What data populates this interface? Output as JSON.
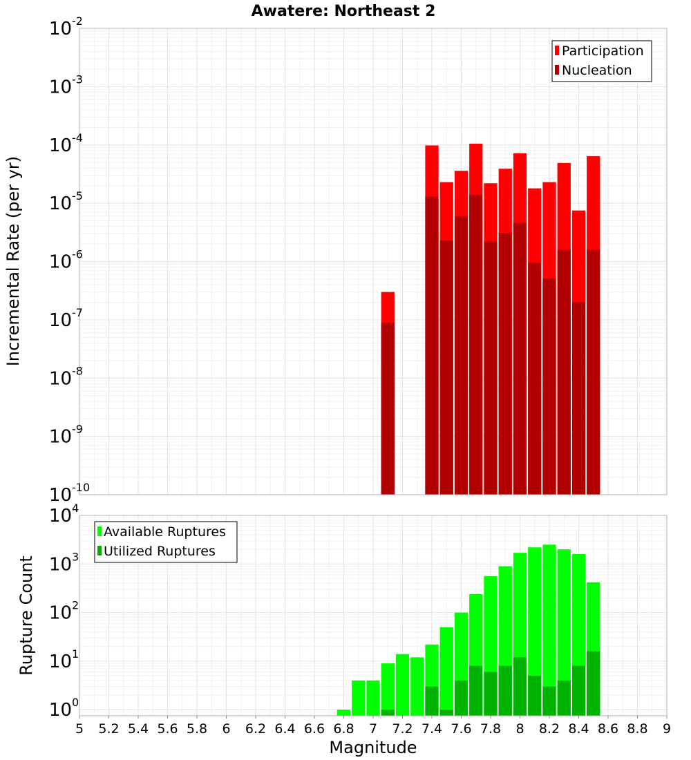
{
  "figure": {
    "title": "Awatere: Northeast 2",
    "xlabel": "Magnitude"
  },
  "chart_data": [
    {
      "type": "bar",
      "title": "Awatere: Northeast 2",
      "xlabel": "Magnitude",
      "ylabel": "Incremental Rate (per yr)",
      "yscale": "log",
      "xlim": [
        5,
        9
      ],
      "ylim": [
        1e-10,
        0.01
      ],
      "grid": true,
      "legend_position": "top-right",
      "x_ticks": [
        "5",
        "5.2",
        "5.4",
        "5.6",
        "5.8",
        "6",
        "6.2",
        "6.4",
        "6.6",
        "6.8",
        "7",
        "7.2",
        "7.4",
        "7.6",
        "7.8",
        "8",
        "8.2",
        "8.4",
        "8.6",
        "8.8",
        "9"
      ],
      "y_ticks": [
        {
          "base": "10",
          "exp": "-10",
          "value": 1e-10
        },
        {
          "base": "10",
          "exp": "-9",
          "value": 1e-09
        },
        {
          "base": "10",
          "exp": "-8",
          "value": 1e-08
        },
        {
          "base": "10",
          "exp": "-7",
          "value": 1e-07
        },
        {
          "base": "10",
          "exp": "-6",
          "value": 1e-06
        },
        {
          "base": "10",
          "exp": "-5",
          "value": 1e-05
        },
        {
          "base": "10",
          "exp": "-4",
          "value": 0.0001
        },
        {
          "base": "10",
          "exp": "-3",
          "value": 0.001
        },
        {
          "base": "10",
          "exp": "-2",
          "value": 0.01
        }
      ],
      "series": [
        {
          "name": "Participation",
          "color": "#ff0000",
          "x": [
            7.1,
            7.4,
            7.5,
            7.6,
            7.7,
            7.8,
            7.9,
            8.0,
            8.1,
            8.2,
            8.3,
            8.4,
            8.5
          ],
          "values": [
            3e-07,
            9.8e-05,
            2.3e-05,
            3.6e-05,
            0.000105,
            2.2e-05,
            3.9e-05,
            7.2e-05,
            1.8e-05,
            2.3e-05,
            4.9e-05,
            7.5e-06,
            6.4e-05
          ]
        },
        {
          "name": "Nucleation",
          "color": "#b20000",
          "x": [
            7.1,
            7.4,
            7.5,
            7.6,
            7.7,
            7.8,
            7.9,
            8.0,
            8.1,
            8.2,
            8.3,
            8.4,
            8.5
          ],
          "values": [
            9e-08,
            1.3e-05,
            2.3e-06,
            6e-06,
            1.4e-05,
            2.2e-06,
            3.1e-06,
            4.6e-06,
            9.5e-07,
            5.1e-07,
            1.6e-06,
            2e-07,
            1.6e-06
          ]
        }
      ]
    },
    {
      "type": "bar",
      "title": "",
      "xlabel": "Magnitude",
      "ylabel": "Rupture Count",
      "yscale": "log",
      "xlim": [
        5,
        9
      ],
      "ylim": [
        0.75,
        10000
      ],
      "grid": true,
      "legend_position": "top-left",
      "x_ticks": [
        "5",
        "5.2",
        "5.4",
        "5.6",
        "5.8",
        "6",
        "6.2",
        "6.4",
        "6.6",
        "6.8",
        "7",
        "7.2",
        "7.4",
        "7.6",
        "7.8",
        "8",
        "8.2",
        "8.4",
        "8.6",
        "8.8",
        "9"
      ],
      "y_ticks": [
        {
          "base": "10",
          "exp": "0",
          "value": 1
        },
        {
          "base": "10",
          "exp": "1",
          "value": 10
        },
        {
          "base": "10",
          "exp": "2",
          "value": 100
        },
        {
          "base": "10",
          "exp": "3",
          "value": 1000
        },
        {
          "base": "10",
          "exp": "4",
          "value": 10000
        }
      ],
      "series": [
        {
          "name": "Available Ruptures",
          "color": "#00ff00",
          "x": [
            6.8,
            6.9,
            7.0,
            7.1,
            7.2,
            7.3,
            7.4,
            7.5,
            7.6,
            7.7,
            7.8,
            7.9,
            8.0,
            8.1,
            8.2,
            8.3,
            8.4,
            8.5
          ],
          "values": [
            1,
            4,
            4,
            9,
            14,
            12,
            22,
            50,
            100,
            240,
            560,
            900,
            1700,
            2200,
            2500,
            2000,
            1600,
            420
          ]
        },
        {
          "name": "Utilized Ruptures",
          "color": "#00b200",
          "x": [
            7.1,
            7.4,
            7.5,
            7.6,
            7.7,
            7.8,
            7.9,
            8.0,
            8.1,
            8.2,
            8.3,
            8.4,
            8.5
          ],
          "values": [
            1,
            3,
            1,
            4,
            8,
            6,
            8,
            12,
            5,
            3,
            4,
            8,
            16
          ]
        }
      ]
    }
  ]
}
